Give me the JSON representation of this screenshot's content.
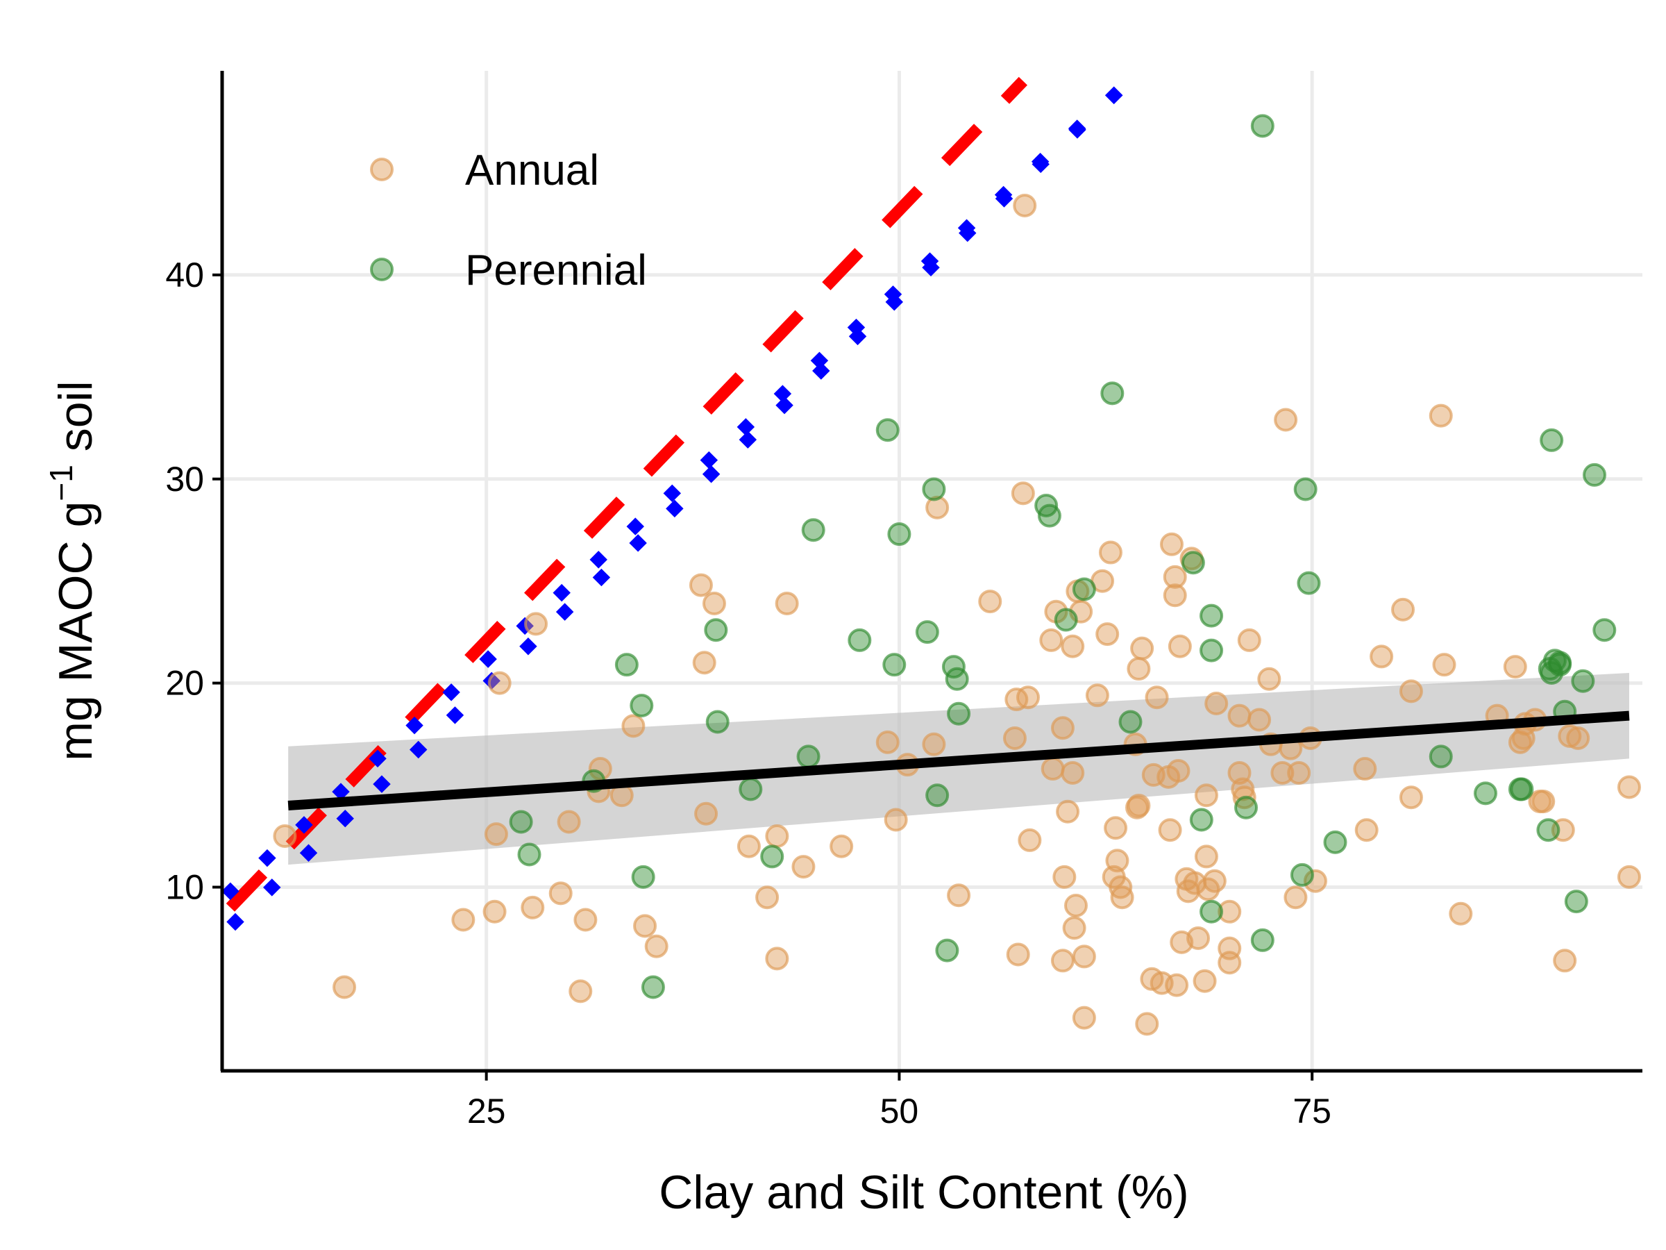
{
  "chart_data": {
    "type": "scatter",
    "xlabel": "Clay and Silt Content (%)",
    "ylabel": {
      "prefix": "mg MAOC g",
      "superscript": "−1",
      "suffix": " soil"
    },
    "xlim": [
      9,
      95
    ],
    "ylim": [
      1,
      50
    ],
    "x_ticks": [
      25,
      50,
      75
    ],
    "y_ticks": [
      10,
      20,
      30,
      40
    ],
    "grid": true,
    "legend_position": "top-left",
    "colors": {
      "annual": "#dd9a55",
      "perennial": "#2e8b2e",
      "fit_line": "#000000",
      "confidence_band": "#bfbfbf",
      "red_dashed": "#ff0000",
      "blue_dotted": "#0000ff",
      "grid": "#ebebeb"
    },
    "series": [
      {
        "name": "Annual",
        "points": [
          [
            12.8,
            12.5
          ],
          [
            16.4,
            5.1
          ],
          [
            23.6,
            8.4
          ],
          [
            25.5,
            8.8
          ],
          [
            25.6,
            12.6
          ],
          [
            25.8,
            20.0
          ],
          [
            27.8,
            9.0
          ],
          [
            28.0,
            22.9
          ],
          [
            29.5,
            9.7
          ],
          [
            30.0,
            13.2
          ],
          [
            30.7,
            4.9
          ],
          [
            31.0,
            8.4
          ],
          [
            31.8,
            14.7
          ],
          [
            31.9,
            15.8
          ],
          [
            33.2,
            14.5
          ],
          [
            33.9,
            17.9
          ],
          [
            34.6,
            8.1
          ],
          [
            35.3,
            7.1
          ],
          [
            38.0,
            24.8
          ],
          [
            38.2,
            21.0
          ],
          [
            38.3,
            13.6
          ],
          [
            38.8,
            23.9
          ],
          [
            40.9,
            12.0
          ],
          [
            42.0,
            9.5
          ],
          [
            42.6,
            12.5
          ],
          [
            42.6,
            6.5
          ],
          [
            43.2,
            23.9
          ],
          [
            44.2,
            11.0
          ],
          [
            46.5,
            12.0
          ],
          [
            49.3,
            17.1
          ],
          [
            49.8,
            13.3
          ],
          [
            50.5,
            16.0
          ],
          [
            52.1,
            17.0
          ],
          [
            52.3,
            28.6
          ],
          [
            53.6,
            9.6
          ],
          [
            55.5,
            24.0
          ],
          [
            57.0,
            17.3
          ],
          [
            57.1,
            19.2
          ],
          [
            57.2,
            6.7
          ],
          [
            57.5,
            29.3
          ],
          [
            57.6,
            43.4
          ],
          [
            57.8,
            19.3
          ],
          [
            57.9,
            12.3
          ],
          [
            59.2,
            22.1
          ],
          [
            59.3,
            15.8
          ],
          [
            59.5,
            23.5
          ],
          [
            59.9,
            6.4
          ],
          [
            59.9,
            17.8
          ],
          [
            60.0,
            10.5
          ],
          [
            60.2,
            13.7
          ],
          [
            60.5,
            15.6
          ],
          [
            60.5,
            21.8
          ],
          [
            60.6,
            8.0
          ],
          [
            60.7,
            9.1
          ],
          [
            60.8,
            24.5
          ],
          [
            61.0,
            23.5
          ],
          [
            61.2,
            6.6
          ],
          [
            61.2,
            3.6
          ],
          [
            62.0,
            19.4
          ],
          [
            62.3,
            25.0
          ],
          [
            62.6,
            22.4
          ],
          [
            62.8,
            26.4
          ],
          [
            63.0,
            10.5
          ],
          [
            63.1,
            12.9
          ],
          [
            63.2,
            11.3
          ],
          [
            63.4,
            10.0
          ],
          [
            63.5,
            9.5
          ],
          [
            64.3,
            17.0
          ],
          [
            64.4,
            13.9
          ],
          [
            64.5,
            14.0
          ],
          [
            64.5,
            20.7
          ],
          [
            64.7,
            21.7
          ],
          [
            65.0,
            3.3
          ],
          [
            65.3,
            5.5
          ],
          [
            65.4,
            15.5
          ],
          [
            65.6,
            19.3
          ],
          [
            65.9,
            5.3
          ],
          [
            66.3,
            15.4
          ],
          [
            66.4,
            12.8
          ],
          [
            66.5,
            26.8
          ],
          [
            66.7,
            25.2
          ],
          [
            66.7,
            24.3
          ],
          [
            66.8,
            5.2
          ],
          [
            66.9,
            15.7
          ],
          [
            67.0,
            21.8
          ],
          [
            67.1,
            7.3
          ],
          [
            67.4,
            10.4
          ],
          [
            67.5,
            9.8
          ],
          [
            67.7,
            26.1
          ],
          [
            67.9,
            10.2
          ],
          [
            68.1,
            7.5
          ],
          [
            68.5,
            5.4
          ],
          [
            68.6,
            14.5
          ],
          [
            68.6,
            11.5
          ],
          [
            68.7,
            9.9
          ],
          [
            69.1,
            10.3
          ],
          [
            69.2,
            19.0
          ],
          [
            70.0,
            8.8
          ],
          [
            70.0,
            7.0
          ],
          [
            70.0,
            6.3
          ],
          [
            70.6,
            15.6
          ],
          [
            70.6,
            18.4
          ],
          [
            70.8,
            14.8
          ],
          [
            70.9,
            14.4
          ],
          [
            71.2,
            22.1
          ],
          [
            71.8,
            18.2
          ],
          [
            72.4,
            20.2
          ],
          [
            72.5,
            17.0
          ],
          [
            73.2,
            15.6
          ],
          [
            73.4,
            32.9
          ],
          [
            73.7,
            16.8
          ],
          [
            74.0,
            9.5
          ],
          [
            74.2,
            15.6
          ],
          [
            74.9,
            17.3
          ],
          [
            75.2,
            10.3
          ],
          [
            78.2,
            15.8
          ],
          [
            78.3,
            12.8
          ],
          [
            79.2,
            21.3
          ],
          [
            80.5,
            23.6
          ],
          [
            81.0,
            19.6
          ],
          [
            81.0,
            14.4
          ],
          [
            82.8,
            33.1
          ],
          [
            83.0,
            20.9
          ],
          [
            84.0,
            8.7
          ],
          [
            86.2,
            18.4
          ],
          [
            87.3,
            20.8
          ],
          [
            87.6,
            17.1
          ],
          [
            87.8,
            17.3
          ],
          [
            87.9,
            18.0
          ],
          [
            88.5,
            18.2
          ],
          [
            88.8,
            14.2
          ],
          [
            89.0,
            14.2
          ],
          [
            90.2,
            12.8
          ],
          [
            90.3,
            6.4
          ],
          [
            90.6,
            17.4
          ],
          [
            91.1,
            17.3
          ],
          [
            94.2,
            14.9
          ],
          [
            94.2,
            10.5
          ]
        ]
      },
      {
        "name": "Perennial",
        "points": [
          [
            27.1,
            13.2
          ],
          [
            27.6,
            11.6
          ],
          [
            31.5,
            15.2
          ],
          [
            33.5,
            20.9
          ],
          [
            34.4,
            18.9
          ],
          [
            34.5,
            10.5
          ],
          [
            35.1,
            5.1
          ],
          [
            38.9,
            22.6
          ],
          [
            39.0,
            18.1
          ],
          [
            41.0,
            14.8
          ],
          [
            42.3,
            11.5
          ],
          [
            44.5,
            16.4
          ],
          [
            44.8,
            27.5
          ],
          [
            47.6,
            22.1
          ],
          [
            49.3,
            32.4
          ],
          [
            49.7,
            20.9
          ],
          [
            50.0,
            27.3
          ],
          [
            51.7,
            22.5
          ],
          [
            52.1,
            29.5
          ],
          [
            52.3,
            14.5
          ],
          [
            52.9,
            6.9
          ],
          [
            53.3,
            20.8
          ],
          [
            53.5,
            20.2
          ],
          [
            53.6,
            18.5
          ],
          [
            58.9,
            28.7
          ],
          [
            59.1,
            28.2
          ],
          [
            60.1,
            23.1
          ],
          [
            61.2,
            24.6
          ],
          [
            62.9,
            34.2
          ],
          [
            64.0,
            18.1
          ],
          [
            67.8,
            25.9
          ],
          [
            68.3,
            13.3
          ],
          [
            68.9,
            23.3
          ],
          [
            68.9,
            21.6
          ],
          [
            68.9,
            8.8
          ],
          [
            71.0,
            13.9
          ],
          [
            72.0,
            7.4
          ],
          [
            72.0,
            47.3
          ],
          [
            74.4,
            10.6
          ],
          [
            74.6,
            29.5
          ],
          [
            74.8,
            24.9
          ],
          [
            76.4,
            12.2
          ],
          [
            82.8,
            16.4
          ],
          [
            85.5,
            14.6
          ],
          [
            87.6,
            14.8
          ],
          [
            87.7,
            14.8
          ],
          [
            89.3,
            12.8
          ],
          [
            89.4,
            20.7
          ],
          [
            89.5,
            20.5
          ],
          [
            89.5,
            31.9
          ],
          [
            89.7,
            21.1
          ],
          [
            90.0,
            20.9
          ],
          [
            90.0,
            21.0
          ],
          [
            90.3,
            18.6
          ],
          [
            91.0,
            9.3
          ],
          [
            91.4,
            20.1
          ],
          [
            92.1,
            30.2
          ],
          [
            92.7,
            22.6
          ]
        ]
      }
    ],
    "fit_line": {
      "x": [
        13,
        94.2
      ],
      "y": [
        14.0,
        18.4
      ],
      "ci_lower": [
        11.1,
        16.3
      ],
      "ci_upper": [
        16.9,
        20.5
      ]
    },
    "red_dashed_line": {
      "x": [
        9.5,
        57.5
      ],
      "y": [
        9.0,
        49.5
      ]
    },
    "blue_dotted_upper": {
      "x": [
        9.5,
        63.0
      ],
      "y": [
        9.8,
        48.8
      ]
    },
    "blue_dotted_lower": {
      "x": [
        9.8,
        63.0
      ],
      "y": [
        8.3,
        48.8
      ]
    }
  }
}
